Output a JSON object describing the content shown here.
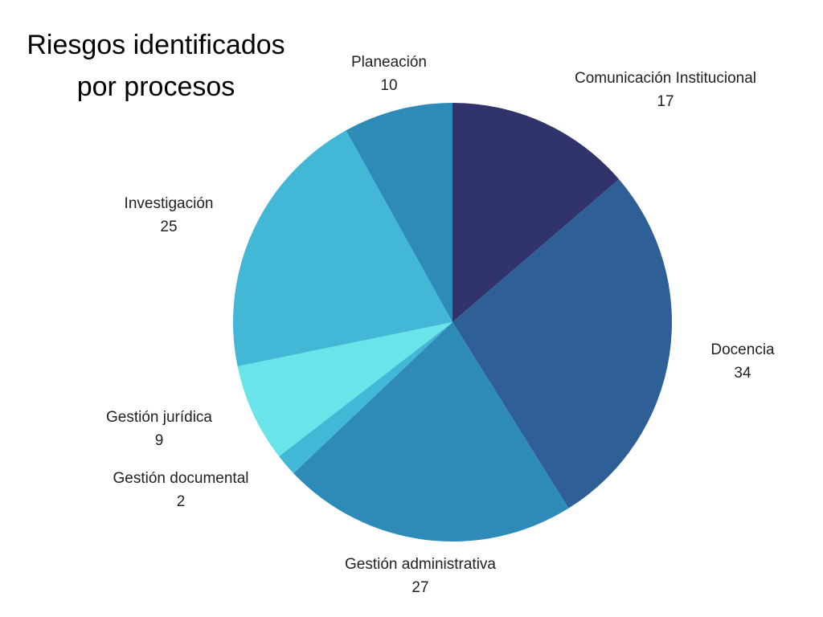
{
  "chart_data": {
    "type": "pie",
    "title": "Riesgos identificados por procesos",
    "categories": [
      "Comunicación Institucional",
      "Docencia",
      "Gestión administrativa",
      "Gestión documental",
      "Gestión jurídica",
      "Investigación",
      "Planeación"
    ],
    "values": [
      17,
      34,
      27,
      2,
      9,
      25,
      10
    ],
    "colors": [
      "#31346b",
      "#2e5f97",
      "#2e8bb8",
      "#40b8d6",
      "#69e4e8",
      "#42b8d6",
      "#2e8bb8"
    ]
  }
}
